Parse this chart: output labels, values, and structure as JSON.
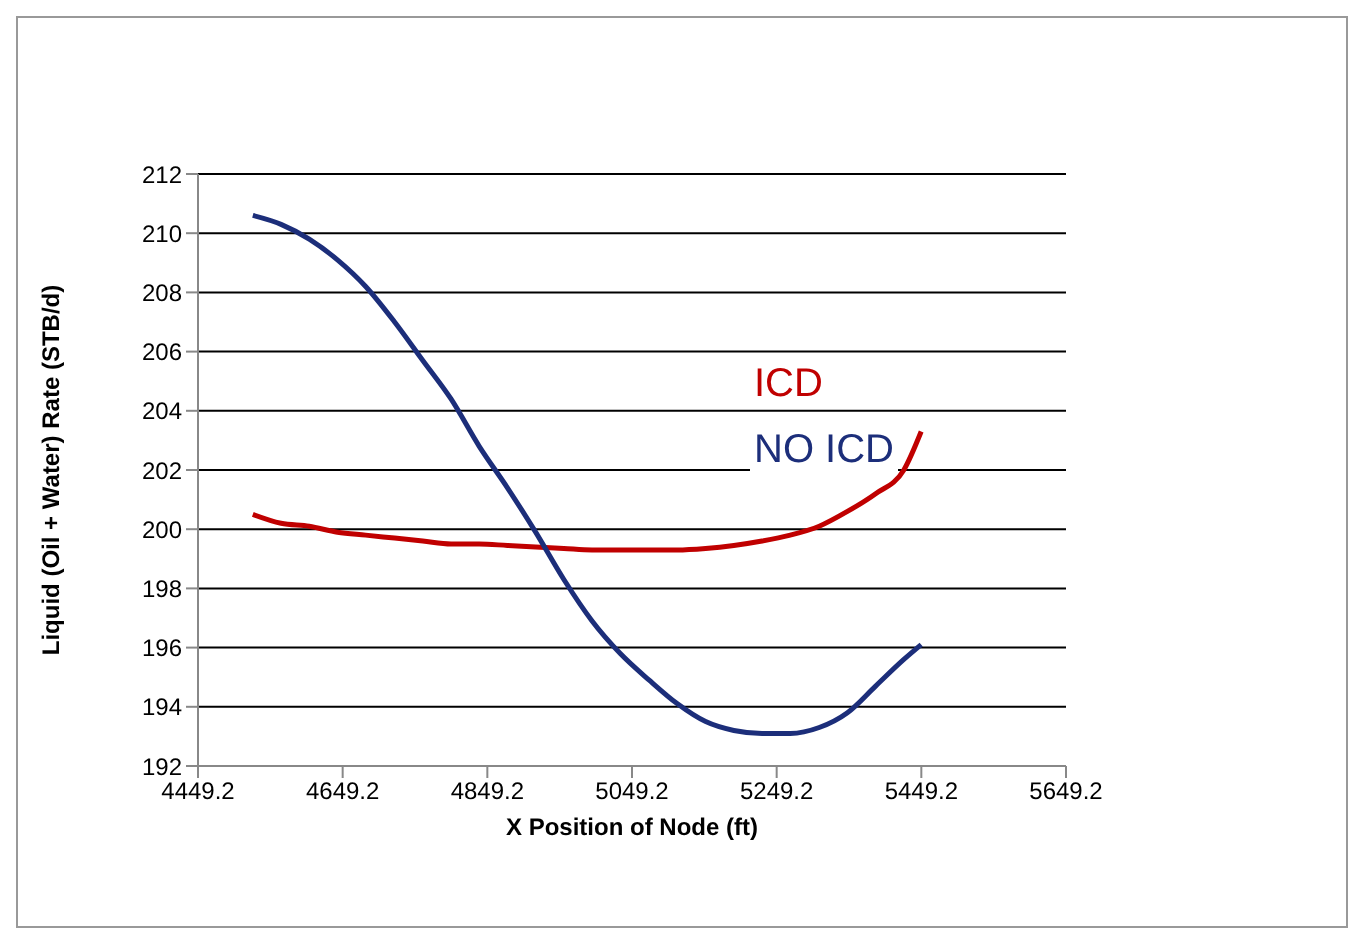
{
  "chart_data": {
    "type": "line",
    "xlabel": "X Position of Node (ft)",
    "ylabel": "Liquid (Oil + Water) Rate (STB/d)",
    "xlim": [
      4449.2,
      5649.2
    ],
    "xticks": [
      4449.2,
      4649.2,
      4849.2,
      5049.2,
      5249.2,
      5449.2,
      5649.2
    ],
    "ylim": [
      192,
      212
    ],
    "yticks": [
      192,
      194,
      196,
      198,
      200,
      202,
      204,
      206,
      208,
      210,
      212
    ],
    "grid": "y",
    "marker": "none",
    "line_style": "solid",
    "series": [
      {
        "name": "ICD",
        "color": "#c00000",
        "x": [
          4525,
          4564,
          4603,
          4642,
          4681,
          4721,
          4760,
          4799,
          4838,
          4877,
          4916,
          4955,
          4994,
          5033,
          5073,
          5112,
          5151,
          5190,
          5229,
          5268,
          5308,
          5347,
          5386,
          5425,
          5449
        ],
        "values": [
          200.5,
          200.2,
          200.1,
          199.9,
          199.8,
          199.7,
          199.6,
          199.5,
          199.5,
          199.45,
          199.4,
          199.35,
          199.3,
          199.3,
          199.3,
          199.3,
          199.35,
          199.45,
          199.6,
          199.8,
          200.1,
          200.6,
          201.2,
          202.0,
          203.3
        ]
      },
      {
        "name": "NO ICD",
        "color": "#1c2e7a",
        "x": [
          4525,
          4564,
          4603,
          4642,
          4681,
          4721,
          4760,
          4799,
          4838,
          4877,
          4916,
          4955,
          4994,
          5033,
          5073,
          5112,
          5151,
          5190,
          5229,
          5268,
          5308,
          5347,
          5386,
          5425,
          5449
        ],
        "values": [
          210.6,
          210.3,
          209.8,
          209.1,
          208.2,
          207.0,
          205.7,
          204.4,
          202.8,
          201.4,
          199.9,
          198.3,
          196.9,
          195.8,
          194.9,
          194.1,
          193.5,
          193.2,
          193.1,
          193.1,
          193.3,
          193.8,
          194.7,
          195.6,
          196.1
        ]
      }
    ]
  }
}
